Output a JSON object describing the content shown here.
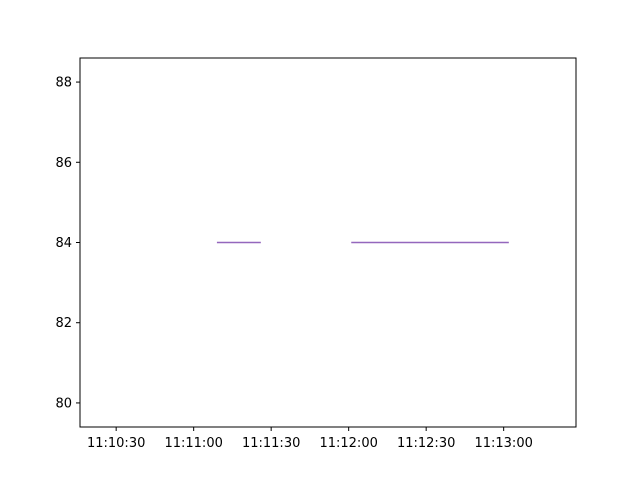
{
  "chart_data": {
    "type": "line",
    "title": "",
    "xlabel": "",
    "ylabel": "",
    "x_type": "time",
    "xlim": [
      "11:10:16",
      "11:13:28"
    ],
    "ylim": [
      79.4,
      88.6
    ],
    "x_ticks": [
      "11:10:30",
      "11:11:00",
      "11:11:30",
      "11:12:00",
      "11:12:30",
      "11:13:00"
    ],
    "y_ticks": [
      80,
      82,
      84,
      86,
      88
    ],
    "grid": false,
    "legend": "none",
    "series": [
      {
        "color": "#9467bd",
        "segments": [
          {
            "x": [
              "11:11:09",
              "11:11:26"
            ],
            "y": [
              84,
              84
            ]
          },
          {
            "x": [
              "11:12:01",
              "11:13:02"
            ],
            "y": [
              84,
              84
            ]
          }
        ]
      }
    ]
  }
}
